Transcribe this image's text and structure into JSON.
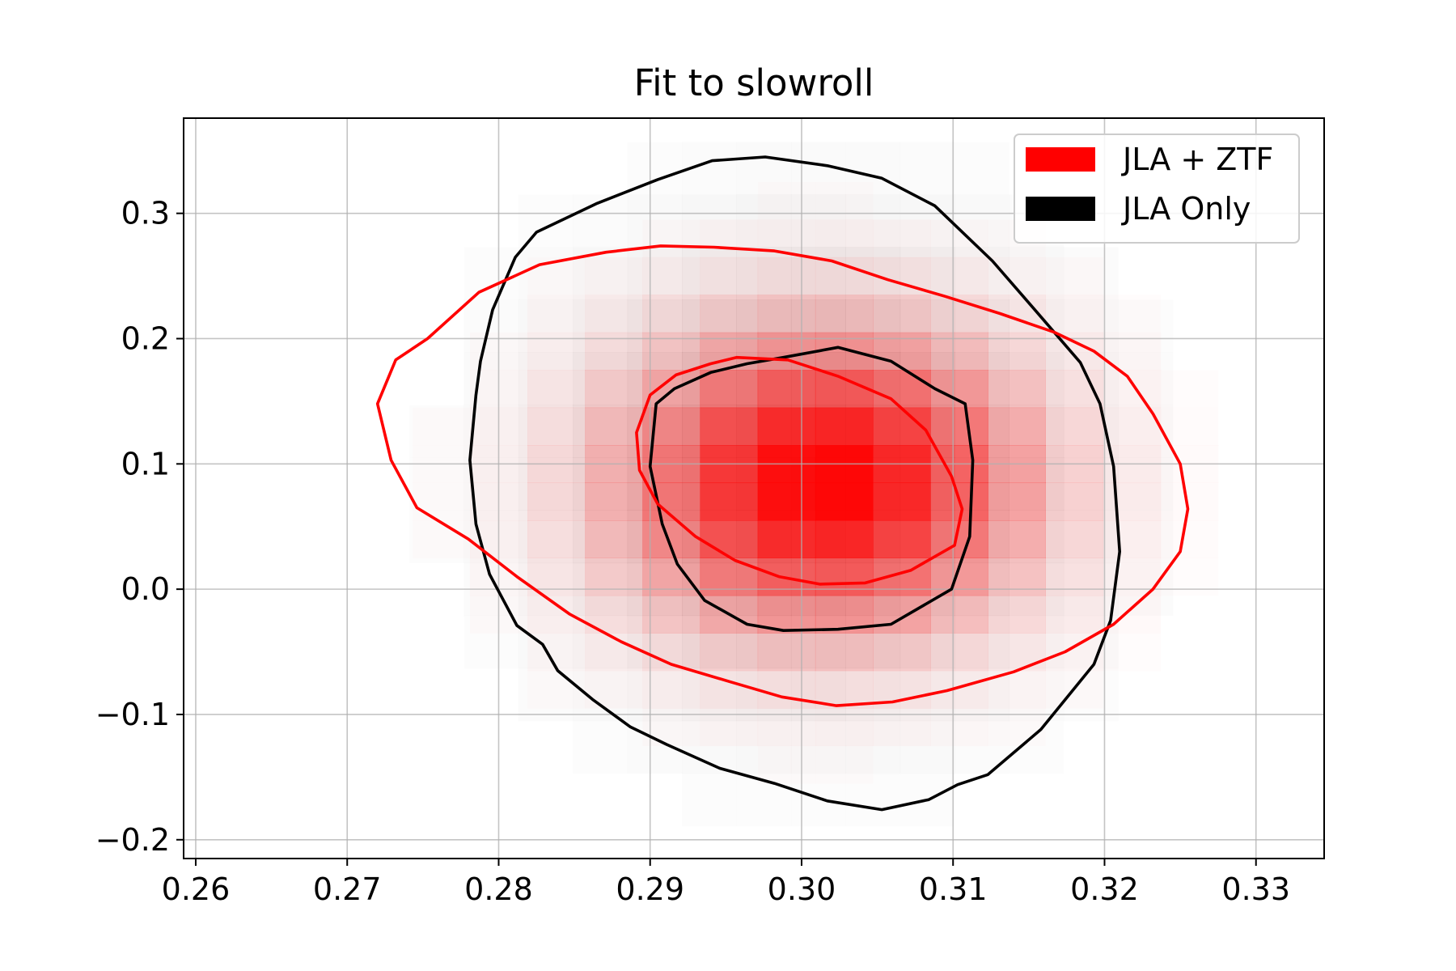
{
  "chart_data": {
    "type": "heatmap",
    "title": "Fit to slowroll",
    "xlabel": "",
    "ylabel": "",
    "xlim": [
      0.2592,
      0.3345
    ],
    "ylim": [
      -0.215,
      0.376
    ],
    "x_ticks": [
      0.26,
      0.27,
      0.28,
      0.29,
      0.3,
      0.31,
      0.32,
      0.33
    ],
    "x_tick_labels": [
      "0.26",
      "0.27",
      "0.28",
      "0.29",
      "0.30",
      "0.31",
      "0.32",
      "0.33"
    ],
    "y_ticks": [
      -0.2,
      -0.1,
      0.0,
      0.1,
      0.2,
      0.3
    ],
    "y_tick_labels": [
      "−0.2",
      "−0.1",
      "0.0",
      "0.1",
      "0.2",
      "0.3"
    ],
    "grid": true,
    "legend_position": "top-right",
    "legend": [
      {
        "label": "JLA + ZTF",
        "color": "#ff0000"
      },
      {
        "label": "JLA Only",
        "color": "#000000"
      }
    ],
    "histograms": [
      {
        "name": "JLA Only",
        "color": "#000000",
        "center": [
          0.3005,
          0.095
        ],
        "sigma": [
          0.0105,
          0.115
        ],
        "cell": [
          0.0036,
          0.042
        ],
        "max_alpha": 0.18
      },
      {
        "name": "JLA + ZTF",
        "color": "#ff0000",
        "center": [
          0.3015,
          0.085
        ],
        "sigma": [
          0.0085,
          0.075
        ],
        "cell": [
          0.0038,
          0.03
        ],
        "max_alpha": 1.0
      }
    ],
    "series": [
      {
        "name": "JLA Only",
        "color": "#000000",
        "contours": [
          [
            [
              0.2941,
              0.342
            ],
            [
              0.2976,
              0.345
            ],
            [
              0.3017,
              0.338
            ],
            [
              0.3053,
              0.328
            ],
            [
              0.3088,
              0.306
            ],
            [
              0.3126,
              0.262
            ],
            [
              0.3154,
              0.223
            ],
            [
              0.3184,
              0.181
            ],
            [
              0.3197,
              0.148
            ],
            [
              0.3206,
              0.098
            ],
            [
              0.321,
              0.03
            ],
            [
              0.3204,
              -0.025
            ],
            [
              0.3193,
              -0.06
            ],
            [
              0.3158,
              -0.112
            ],
            [
              0.3123,
              -0.148
            ],
            [
              0.3103,
              -0.156
            ],
            [
              0.3084,
              -0.168
            ],
            [
              0.3053,
              -0.176
            ],
            [
              0.3017,
              -0.169
            ],
            [
              0.2982,
              -0.155
            ],
            [
              0.2946,
              -0.143
            ],
            [
              0.2911,
              -0.124
            ],
            [
              0.2887,
              -0.11
            ],
            [
              0.2862,
              -0.088
            ],
            [
              0.2839,
              -0.065
            ],
            [
              0.2829,
              -0.044
            ],
            [
              0.2812,
              -0.029
            ],
            [
              0.2794,
              0.012
            ],
            [
              0.2785,
              0.052
            ],
            [
              0.2781,
              0.103
            ],
            [
              0.2785,
              0.155
            ],
            [
              0.2788,
              0.182
            ],
            [
              0.2796,
              0.223
            ],
            [
              0.2811,
              0.265
            ],
            [
              0.2825,
              0.285
            ],
            [
              0.2865,
              0.308
            ],
            [
              0.2905,
              0.327
            ],
            [
              0.2941,
              0.342
            ]
          ],
          [
            [
              0.2988,
              0.185
            ],
            [
              0.3024,
              0.193
            ],
            [
              0.3059,
              0.182
            ],
            [
              0.3088,
              0.16
            ],
            [
              0.3108,
              0.148
            ],
            [
              0.3113,
              0.103
            ],
            [
              0.3111,
              0.042
            ],
            [
              0.3099,
              0.0
            ],
            [
              0.3059,
              -0.028
            ],
            [
              0.3024,
              -0.032
            ],
            [
              0.2988,
              -0.033
            ],
            [
              0.2964,
              -0.028
            ],
            [
              0.2936,
              -0.009
            ],
            [
              0.2918,
              0.02
            ],
            [
              0.2908,
              0.052
            ],
            [
              0.29,
              0.098
            ],
            [
              0.2904,
              0.148
            ],
            [
              0.2916,
              0.16
            ],
            [
              0.294,
              0.173
            ],
            [
              0.2964,
              0.18
            ],
            [
              0.2988,
              0.185
            ]
          ]
        ]
      },
      {
        "name": "JLA + ZTF",
        "color": "#ff0000",
        "contours": [
          [
            [
              0.2942,
              0.273
            ],
            [
              0.2982,
              0.27
            ],
            [
              0.302,
              0.262
            ],
            [
              0.3057,
              0.247
            ],
            [
              0.3094,
              0.234
            ],
            [
              0.3131,
              0.22
            ],
            [
              0.3167,
              0.205
            ],
            [
              0.3193,
              0.19
            ],
            [
              0.3215,
              0.17
            ],
            [
              0.3232,
              0.14
            ],
            [
              0.325,
              0.1
            ],
            [
              0.3255,
              0.064
            ],
            [
              0.325,
              0.03
            ],
            [
              0.3232,
              0.0
            ],
            [
              0.3206,
              -0.028
            ],
            [
              0.3174,
              -0.05
            ],
            [
              0.314,
              -0.066
            ],
            [
              0.3096,
              -0.081
            ],
            [
              0.306,
              -0.09
            ],
            [
              0.3023,
              -0.093
            ],
            [
              0.2987,
              -0.086
            ],
            [
              0.2953,
              -0.074
            ],
            [
              0.2914,
              -0.06
            ],
            [
              0.2881,
              -0.042
            ],
            [
              0.2847,
              -0.02
            ],
            [
              0.2812,
              0.01
            ],
            [
              0.278,
              0.04
            ],
            [
              0.2746,
              0.065
            ],
            [
              0.2729,
              0.103
            ],
            [
              0.272,
              0.148
            ],
            [
              0.2732,
              0.183
            ],
            [
              0.2753,
              0.2
            ],
            [
              0.2787,
              0.237
            ],
            [
              0.2827,
              0.259
            ],
            [
              0.2871,
              0.269
            ],
            [
              0.2907,
              0.274
            ],
            [
              0.2942,
              0.273
            ]
          ],
          [
            [
              0.2957,
              0.185
            ],
            [
              0.2991,
              0.183
            ],
            [
              0.3024,
              0.17
            ],
            [
              0.3059,
              0.152
            ],
            [
              0.3082,
              0.127
            ],
            [
              0.3099,
              0.09
            ],
            [
              0.3106,
              0.064
            ],
            [
              0.3101,
              0.035
            ],
            [
              0.3072,
              0.015
            ],
            [
              0.3042,
              0.005
            ],
            [
              0.3012,
              0.004
            ],
            [
              0.2985,
              0.01
            ],
            [
              0.2956,
              0.023
            ],
            [
              0.293,
              0.042
            ],
            [
              0.2905,
              0.068
            ],
            [
              0.2893,
              0.095
            ],
            [
              0.2891,
              0.125
            ],
            [
              0.29,
              0.155
            ],
            [
              0.2917,
              0.171
            ],
            [
              0.294,
              0.18
            ],
            [
              0.2957,
              0.185
            ]
          ]
        ]
      }
    ]
  }
}
